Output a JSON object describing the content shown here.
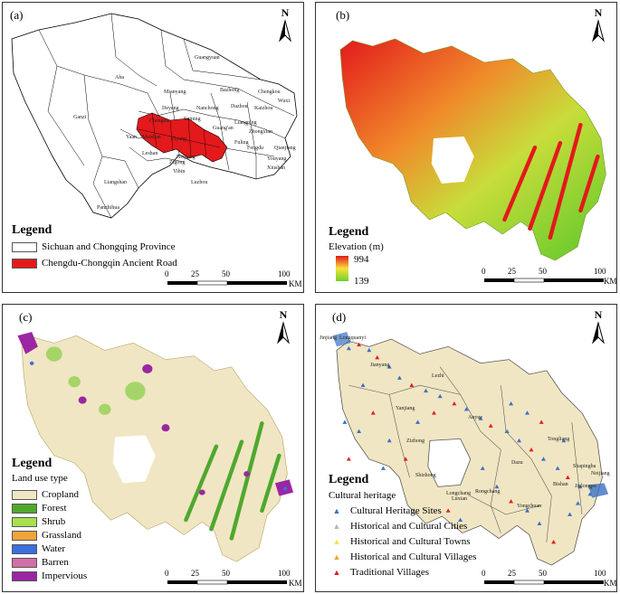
{
  "panels": {
    "a": {
      "label": "(a)",
      "legend_title": "Legend",
      "items": [
        {
          "label": "Sichuan and Chongqing Province",
          "color": "#ffffff"
        },
        {
          "label": "Chengdu-Chongqin Ancient Road",
          "color": "#e3191c"
        }
      ],
      "places": [
        "Aba",
        "Ganzi",
        "Guangyuan",
        "Bazhong",
        "Chengkou",
        "Wuxi",
        "Mianyang",
        "Dazhou",
        "Kaizhou",
        "Deyang",
        "Nanchong",
        "Chengdu",
        "Suining",
        "Guang'an",
        "Liangping",
        "Yaan",
        "Meishan",
        "Ziyang",
        "Zhongxian",
        "Leshan",
        "Neijiang",
        "Fuling",
        "Zigong",
        "Fengdu",
        "Yibin",
        "Luzhou",
        "Qianjiang",
        "Youyang",
        "Xiushan",
        "Liangshan",
        "Panzhihua"
      ],
      "scale": {
        "ticks": [
          "0",
          "25",
          "50",
          "100"
        ],
        "unit": "KM"
      },
      "north": "N"
    },
    "b": {
      "label": "(b)",
      "legend_title": "Legend",
      "subtitle": "Elevation (m)",
      "high": "994",
      "low": "139",
      "scale": {
        "ticks": [
          "0",
          "25",
          "50",
          "100"
        ],
        "unit": "KM"
      },
      "north": "N"
    },
    "c": {
      "label": "(c)",
      "legend_title": "Legend",
      "subtitle": "Land use type",
      "items": [
        {
          "label": "Cropland",
          "color": "#f0e6c3"
        },
        {
          "label": "Forest",
          "color": "#4fa82e"
        },
        {
          "label": "Shrub",
          "color": "#a8e050"
        },
        {
          "label": "Grassland",
          "color": "#f2a33a"
        },
        {
          "label": "Water",
          "color": "#3a6fe0"
        },
        {
          "label": "Barren",
          "color": "#d36fa8"
        },
        {
          "label": "Impervious",
          "color": "#9b26a3"
        }
      ],
      "scale": {
        "ticks": [
          "0",
          "25",
          "50",
          "100"
        ],
        "unit": "KM"
      },
      "north": "N"
    },
    "d": {
      "label": "(d)",
      "legend_title": "Legend",
      "subtitle": "Cultural heritage",
      "items": [
        {
          "label": "Cultural Heritage Sites",
          "color": "#3b6fc4"
        },
        {
          "label": "Historical and Cultural Cities",
          "color": "#b7b7b7"
        },
        {
          "label": "Historical and Cultural Towns",
          "color": "#f2e24a"
        },
        {
          "label": "Historical and Cultural Villages",
          "color": "#f0a030"
        },
        {
          "label": "Traditional Villages",
          "color": "#e02020"
        }
      ],
      "places": [
        "Jinjiang",
        "Longquanyi",
        "Jianyang",
        "Lezhi",
        "Yanjiang",
        "Anyue",
        "Zizhong",
        "Tongliang",
        "Dazu",
        "Shapingba",
        "Neijiang",
        "Jiulongpo",
        "Rongchang",
        "Bishan",
        "Shizhong",
        "Luxian",
        "Yongchuan",
        "Longchang"
      ],
      "scale": {
        "ticks": [
          "0",
          "25",
          "50",
          "100"
        ],
        "unit": "KM"
      },
      "north": "N"
    }
  }
}
